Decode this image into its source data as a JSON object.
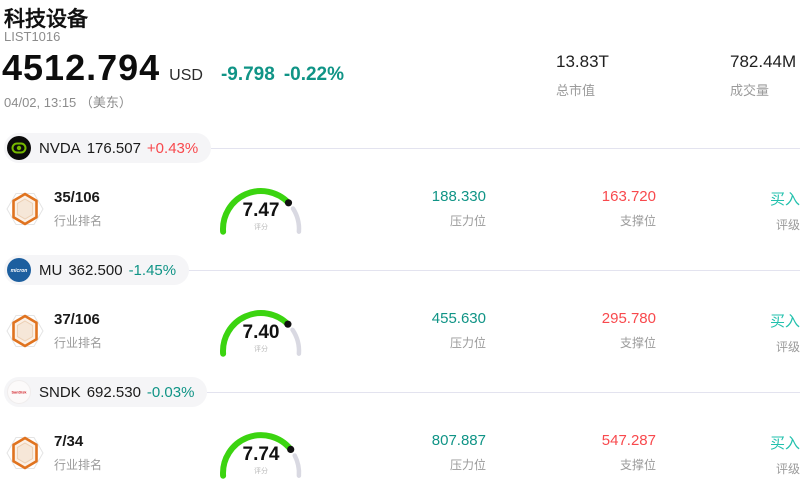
{
  "header": {
    "title": "科技设备",
    "list_id": "LIST1016",
    "price": "4512.794",
    "currency": "USD",
    "change_abs": "-9.798",
    "change_pct": "-0.22%",
    "change_dir": "down",
    "timestamp": "04/02, 13:15 （美东）",
    "stats": [
      {
        "value": "13.83T",
        "label": "总市值"
      },
      {
        "value": "782.44M",
        "label": "成交量"
      }
    ]
  },
  "labels": {
    "rank": "行业排名",
    "score": "评分",
    "pressure": "压力位",
    "support": "支撑位",
    "rating": "评级"
  },
  "colors": {
    "up": "#f8494d",
    "down": "#109486",
    "rating": "#22c1ad",
    "gauge_green": "#3bd410",
    "gauge_track": "#d9d9e2",
    "badge_orange": "#e0731f"
  },
  "stocks": [
    {
      "ticker": "NVDA",
      "price": "176.507",
      "change": "+0.43%",
      "change_dir": "up",
      "icon": "nvidia-logo",
      "rank": "35/106",
      "score": "7.47",
      "pressure": "188.330",
      "support": "163.720",
      "rating": "买入"
    },
    {
      "ticker": "MU",
      "price": "362.500",
      "change": "-1.45%",
      "change_dir": "down",
      "icon": "micron-logo",
      "rank": "37/106",
      "score": "7.40",
      "pressure": "455.630",
      "support": "295.780",
      "rating": "买入"
    },
    {
      "ticker": "SNDK",
      "price": "692.530",
      "change": "-0.03%",
      "change_dir": "down",
      "icon": "sandisk-logo",
      "rank": "7/34",
      "score": "7.74",
      "pressure": "807.887",
      "support": "547.287",
      "rating": "买入"
    }
  ]
}
